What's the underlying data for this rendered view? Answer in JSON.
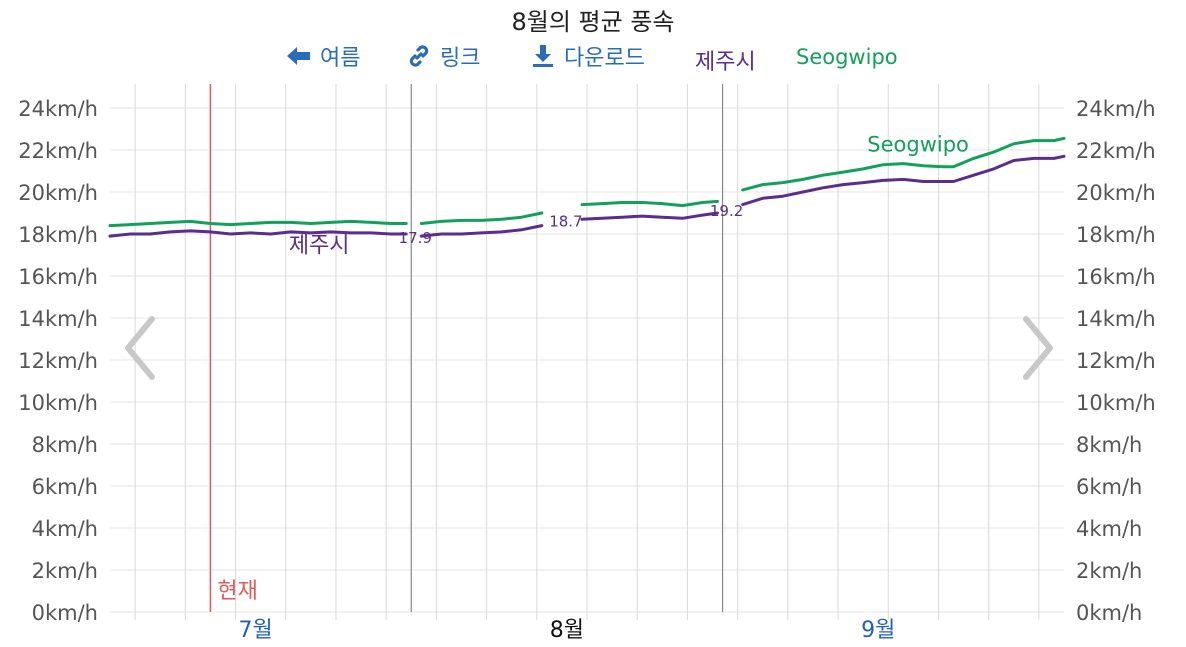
{
  "chart_data": {
    "type": "line",
    "title": "8월의 평균 풍속",
    "unit": "km/h",
    "ylim": [
      0,
      24
    ],
    "yticks": [
      0,
      2,
      4,
      6,
      8,
      10,
      12,
      14,
      16,
      18,
      20,
      22,
      24
    ],
    "y_tick_suffix": "km/h",
    "xlim": [
      0,
      85
    ],
    "month_labels": [
      {
        "label": "7월",
        "x": 14.5,
        "current": false
      },
      {
        "label": "8월",
        "x": 45.5,
        "current": true
      },
      {
        "label": "9월",
        "x": 76.5,
        "current": false
      }
    ],
    "month_boundaries": [
      30,
      61
    ],
    "now_marker": {
      "label": "현재",
      "x": 10
    },
    "series": [
      {
        "name": "제주시",
        "color": "#5b2d8c",
        "label_x": 20,
        "segments": [
          [
            [
              0,
              17.9
            ],
            [
              2,
              18.0
            ],
            [
              4,
              18.0
            ],
            [
              6,
              18.1
            ],
            [
              8,
              18.15
            ],
            [
              10,
              18.1
            ],
            [
              12,
              18.0
            ],
            [
              14,
              18.05
            ],
            [
              16,
              18.0
            ],
            [
              18,
              18.1
            ],
            [
              20,
              18.05
            ],
            [
              22,
              18.1
            ],
            [
              24,
              18.05
            ],
            [
              26,
              18.05
            ],
            [
              28,
              18.0
            ],
            [
              29.5,
              18.0
            ]
          ],
          [
            [
              31,
              17.9
            ],
            [
              33,
              18.0
            ],
            [
              35,
              18.0
            ],
            [
              37,
              18.05
            ],
            [
              39,
              18.1
            ],
            [
              41,
              18.2
            ],
            [
              43,
              18.4
            ]
          ],
          [
            [
              47,
              18.7
            ],
            [
              49,
              18.75
            ],
            [
              51,
              18.8
            ],
            [
              53,
              18.85
            ],
            [
              55,
              18.8
            ],
            [
              57,
              18.75
            ],
            [
              59,
              18.9
            ],
            [
              60.5,
              19.0
            ]
          ],
          [
            [
              63,
              19.4
            ],
            [
              65,
              19.7
            ],
            [
              67,
              19.8
            ],
            [
              69,
              20.0
            ],
            [
              71,
              20.2
            ],
            [
              73,
              20.35
            ],
            [
              75,
              20.45
            ],
            [
              77,
              20.55
            ],
            [
              79,
              20.6
            ],
            [
              81,
              20.5
            ],
            [
              83,
              20.5
            ],
            [
              84,
              20.5
            ]
          ]
        ],
        "segments_tail": [
          [
            [
              84,
              20.5
            ],
            [
              86,
              20.8
            ],
            [
              88,
              21.1
            ],
            [
              90,
              21.5
            ],
            [
              92,
              21.6
            ],
            [
              94,
              21.6
            ],
            [
              95,
              21.7
            ]
          ]
        ]
      },
      {
        "name": "Seogwipo",
        "color": "#12a05c",
        "label_x": 78,
        "segments": [
          [
            [
              0,
              18.4
            ],
            [
              2,
              18.45
            ],
            [
              4,
              18.5
            ],
            [
              6,
              18.55
            ],
            [
              8,
              18.6
            ],
            [
              10,
              18.5
            ],
            [
              12,
              18.45
            ],
            [
              14,
              18.5
            ],
            [
              16,
              18.55
            ],
            [
              18,
              18.55
            ],
            [
              20,
              18.5
            ],
            [
              22,
              18.55
            ],
            [
              24,
              18.6
            ],
            [
              26,
              18.55
            ],
            [
              28,
              18.5
            ],
            [
              29.5,
              18.5
            ]
          ],
          [
            [
              31,
              18.5
            ],
            [
              33,
              18.6
            ],
            [
              35,
              18.65
            ],
            [
              37,
              18.65
            ],
            [
              39,
              18.7
            ],
            [
              41,
              18.8
            ],
            [
              43,
              19.0
            ]
          ],
          [
            [
              47,
              19.4
            ],
            [
              49,
              19.45
            ],
            [
              51,
              19.5
            ],
            [
              53,
              19.5
            ],
            [
              55,
              19.45
            ],
            [
              57,
              19.35
            ],
            [
              59,
              19.5
            ],
            [
              60.5,
              19.55
            ]
          ],
          [
            [
              63,
              20.1
            ],
            [
              65,
              20.35
            ],
            [
              67,
              20.45
            ],
            [
              69,
              20.6
            ],
            [
              71,
              20.8
            ],
            [
              73,
              20.95
            ],
            [
              75,
              21.1
            ],
            [
              77,
              21.3
            ],
            [
              79,
              21.35
            ],
            [
              81,
              21.25
            ],
            [
              83,
              21.2
            ],
            [
              84,
              21.2
            ]
          ]
        ],
        "segments_tail": [
          [
            [
              84,
              21.2
            ],
            [
              86,
              21.6
            ],
            [
              88,
              21.9
            ],
            [
              90,
              22.3
            ],
            [
              92,
              22.45
            ],
            [
              94,
              22.45
            ],
            [
              95,
              22.55
            ]
          ]
        ]
      }
    ],
    "data_labels": [
      {
        "x": 30,
        "y": 17.9,
        "text": "17.9",
        "series": "제주시"
      },
      {
        "x": 45,
        "y": 18.7,
        "text": "18.7",
        "series": "제주시"
      },
      {
        "x": 61,
        "y": 19.2,
        "text": "19.2",
        "series": "제주시"
      }
    ]
  },
  "toolbar": {
    "back_label": "여름",
    "link_label": "링크",
    "download_label": "다운로드"
  },
  "legend": {
    "jeju_label": "제주시",
    "seogwipo_label": "Seogwipo"
  },
  "colors": {
    "link_blue": "#2a6cb8",
    "now_red": "#e05a5a",
    "grid": "#e6e6e6",
    "vgrid": "#d9d9d9",
    "month_line": "#888888",
    "tick_text": "#555555",
    "month_blue": "#1f5fbf"
  }
}
